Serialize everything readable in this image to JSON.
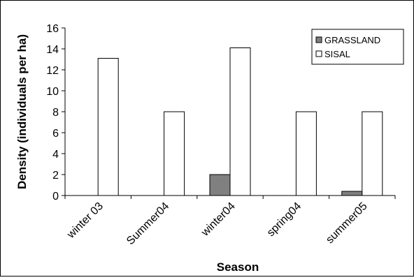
{
  "chart_data": {
    "type": "bar",
    "title": "",
    "xlabel": "Season",
    "ylabel": "Density (individuals per ha)",
    "categories": [
      "winter 03",
      "Summer04",
      "winter04",
      "spring04",
      "summer05"
    ],
    "series": [
      {
        "name": "GRASSLAND",
        "color": "#808080",
        "values": [
          0,
          0,
          2,
          0,
          0.4
        ]
      },
      {
        "name": "SISAL",
        "color": "#ffffff",
        "values": [
          13.1,
          8,
          14.1,
          8,
          8
        ]
      }
    ],
    "ylim": [
      0,
      16
    ],
    "yticks": [
      0,
      2,
      4,
      6,
      8,
      10,
      12,
      14,
      16
    ],
    "grid": false,
    "legend_position": "top-right"
  }
}
